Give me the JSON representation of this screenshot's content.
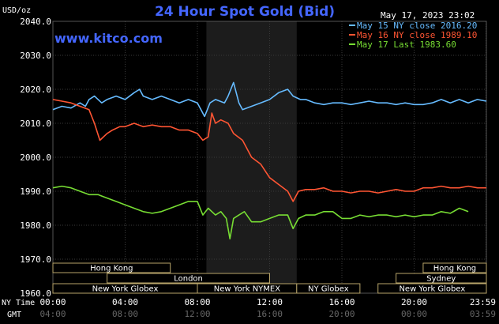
{
  "chart_data": {
    "type": "line",
    "title": "24 Hour Spot Gold (Bid)",
    "unit_label": "USD/oz",
    "watermark": "www.kitco.com",
    "timestamp": "May 17, 2023 23:02",
    "ylim": [
      1960,
      2040
    ],
    "y_ticks": [
      "1960.0",
      "1970.0",
      "1980.0",
      "1990.0",
      "2000.0",
      "2010.0",
      "2020.0",
      "2030.0",
      "2040.0"
    ],
    "x_ticks": [
      {
        "h": 0,
        "ny": "00:00",
        "gmt": "04:00"
      },
      {
        "h": 4,
        "ny": "04:00",
        "gmt": "08:00"
      },
      {
        "h": 8,
        "ny": "08:00",
        "gmt": "12:00"
      },
      {
        "h": 12,
        "ny": "12:00",
        "gmt": "16:00"
      },
      {
        "h": 16,
        "ny": "16:00",
        "gmt": "20:00"
      },
      {
        "h": 20,
        "ny": "20:00",
        "gmt": "00:00"
      },
      {
        "h": 23.98,
        "ny": "23:59",
        "gmt": "03:59"
      }
    ],
    "ny_time_label": "NY Time",
    "gmt_label": "GMT",
    "shaded_hours": [
      8.5,
      13.5
    ],
    "colors": {
      "series1": "#66bbff",
      "series2": "#ff5533",
      "series3": "#77dd33",
      "title": "#4466ff",
      "background": "#000000"
    },
    "series": [
      {
        "name": "May 15 NY close 2016.20",
        "color": "#66bbff",
        "x": [
          0,
          0.5,
          1,
          1.5,
          1.8,
          2,
          2.3,
          2.7,
          3,
          3.5,
          4,
          4.5,
          4.8,
          5,
          5.5,
          6,
          6.5,
          7,
          7.5,
          8,
          8.4,
          8.7,
          9,
          9.5,
          9.7,
          10,
          10.3,
          10.5,
          11,
          11.5,
          12,
          12.5,
          13,
          13.3,
          13.7,
          14,
          14.5,
          15,
          15.5,
          16,
          16.5,
          17,
          17.5,
          18,
          18.5,
          19,
          19.5,
          20,
          20.5,
          21,
          21.5,
          22,
          22.5,
          23,
          23.5,
          24
        ],
        "values": [
          2014,
          2015,
          2014.5,
          2016,
          2015,
          2017,
          2018,
          2016,
          2017,
          2018,
          2017,
          2019,
          2020,
          2018,
          2017,
          2018,
          2017,
          2016,
          2017,
          2016,
          2012,
          2016,
          2017,
          2016,
          2018,
          2022,
          2016,
          2014,
          2015,
          2016,
          2017,
          2019,
          2020,
          2018,
          2017,
          2017,
          2016,
          2015.5,
          2016,
          2016,
          2015.5,
          2016,
          2016.5,
          2016,
          2016,
          2015.5,
          2016,
          2015.5,
          2015.5,
          2016,
          2017,
          2016,
          2017,
          2016,
          2017,
          2016.5
        ]
      },
      {
        "name": "May 16 NY close 1989.10",
        "color": "#ff5533",
        "x": [
          0,
          0.5,
          1,
          1.5,
          2,
          2.3,
          2.6,
          3,
          3.3,
          3.7,
          4,
          4.5,
          5,
          5.5,
          6,
          6.5,
          7,
          7.5,
          8,
          8.3,
          8.6,
          8.8,
          9,
          9.3,
          9.7,
          10,
          10.5,
          11,
          11.5,
          12,
          12.5,
          13,
          13.3,
          13.6,
          14,
          14.5,
          15,
          15.5,
          16,
          16.5,
          17,
          17.5,
          18,
          18.5,
          19,
          19.5,
          20,
          20.5,
          21,
          21.5,
          22,
          22.5,
          23,
          23.5,
          24
        ],
        "values": [
          2017,
          2016.5,
          2016,
          2015,
          2014,
          2010,
          2005,
          2007,
          2008,
          2009,
          2009,
          2010,
          2009,
          2009.5,
          2009,
          2009,
          2008,
          2008,
          2007,
          2005,
          2006,
          2013,
          2010,
          2011,
          2010,
          2007,
          2005,
          2000,
          1998,
          1994,
          1992,
          1990,
          1987,
          1990,
          1990.5,
          1990.5,
          1991,
          1990,
          1990,
          1989.5,
          1990,
          1990,
          1989.5,
          1990,
          1990.5,
          1990,
          1990,
          1991,
          1991,
          1991.5,
          1991,
          1991,
          1991.5,
          1991,
          1991
        ]
      },
      {
        "name": "May 17 Last 1983.60",
        "color": "#77dd33",
        "x": [
          0,
          0.5,
          1,
          1.5,
          2,
          2.5,
          3,
          3.5,
          4,
          4.5,
          5,
          5.5,
          6,
          6.5,
          7,
          7.5,
          8,
          8.3,
          8.6,
          9,
          9.3,
          9.6,
          9.8,
          10,
          10.3,
          10.6,
          11,
          11.5,
          12,
          12.5,
          13,
          13.3,
          13.6,
          14,
          14.5,
          15,
          15.5,
          16,
          16.5,
          17,
          17.5,
          18,
          18.5,
          19,
          19.5,
          20,
          20.5,
          21,
          21.5,
          22,
          22.5,
          23
        ],
        "values": [
          1991,
          1991.5,
          1991,
          1990,
          1989,
          1989,
          1988,
          1987,
          1986,
          1985,
          1984,
          1983.5,
          1984,
          1985,
          1986,
          1987,
          1987,
          1983,
          1985,
          1983,
          1984,
          1982,
          1976,
          1982,
          1983,
          1984,
          1981,
          1981,
          1982,
          1983,
          1983,
          1979,
          1982,
          1983,
          1983,
          1984,
          1984,
          1982,
          1982,
          1983,
          1982.5,
          1983,
          1983,
          1982.5,
          1983,
          1982.5,
          1983,
          1983,
          1984,
          1983.5,
          1985,
          1984
        ]
      }
    ],
    "sessions": [
      {
        "name": "Hong Kong",
        "start": 0,
        "end": 6.5,
        "row": 0
      },
      {
        "name": "Hong Kong",
        "start": 20.5,
        "end": 24,
        "row": 0
      },
      {
        "name": "London",
        "start": 3,
        "end": 12,
        "row": 1
      },
      {
        "name": "Sydney",
        "start": 19,
        "end": 24,
        "row": 1
      },
      {
        "name": "New York Globex",
        "start": 0,
        "end": 8,
        "row": 2
      },
      {
        "name": "New York NYMEX",
        "start": 8,
        "end": 13.5,
        "row": 2
      },
      {
        "name": "NY Globex",
        "start": 13.5,
        "end": 17,
        "row": 2
      },
      {
        "name": "New York Globex",
        "start": 18,
        "end": 24,
        "row": 2
      }
    ]
  }
}
